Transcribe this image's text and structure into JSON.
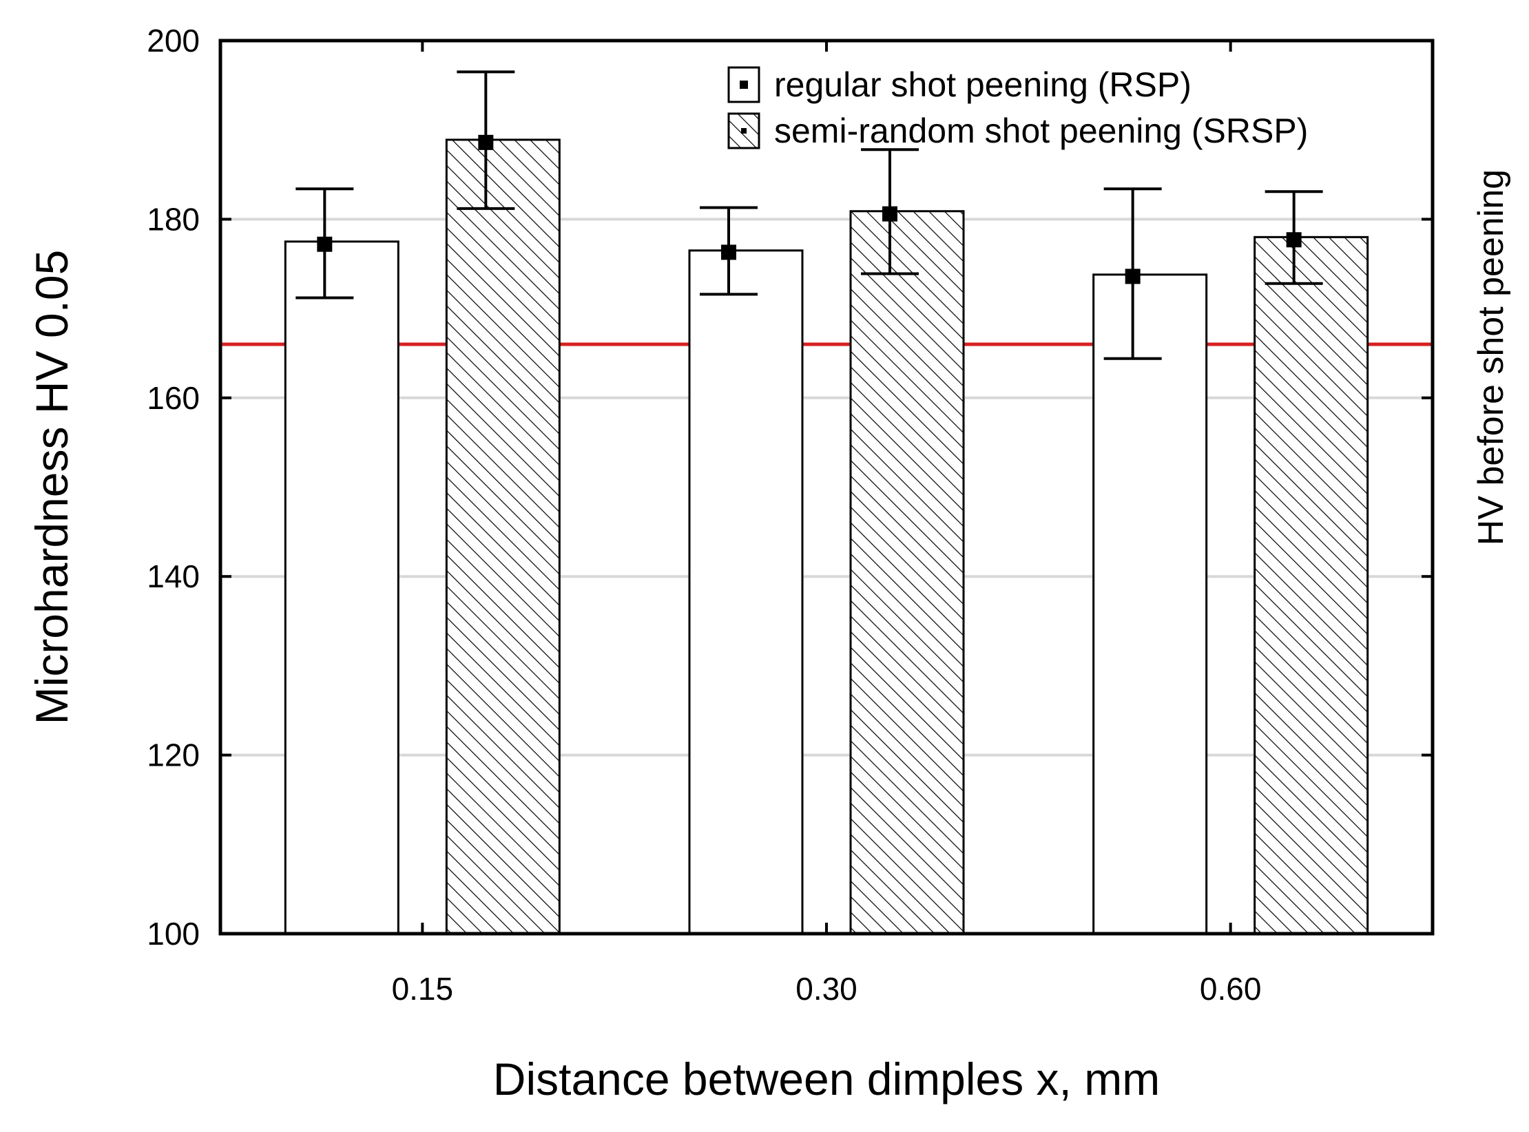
{
  "chart_data": {
    "type": "bar",
    "title": "",
    "xlabel": "Distance between dimples x, mm",
    "ylabel": "Microhardness HV 0.05",
    "right_label": "HV before shot peening",
    "categories": [
      "0.15",
      "0.30",
      "0.60"
    ],
    "ylim": [
      100,
      200
    ],
    "yticks": [
      "100",
      "120",
      "140",
      "160",
      "180",
      "200"
    ],
    "grid": true,
    "legend_position": "top-right",
    "reference_line": {
      "label": "HV before shot peening",
      "value": 166,
      "color": "#d62020"
    },
    "series": [
      {
        "name": "regular shot peening (RSP)",
        "pattern": "solid-white",
        "values": [
          177.5,
          176.5,
          173.8
        ],
        "means": [
          177.2,
          176.3,
          173.6
        ],
        "err_low": [
          171.2,
          171.6,
          164.4
        ],
        "err_high": [
          183.4,
          181.3,
          183.4
        ]
      },
      {
        "name": "semi-random shot peening (SRSP)",
        "pattern": "hatched",
        "values": [
          188.9,
          180.9,
          178.0
        ],
        "means": [
          188.6,
          180.6,
          177.7
        ],
        "err_low": [
          181.2,
          173.9,
          172.8
        ],
        "err_high": [
          196.5,
          187.8,
          183.1
        ]
      }
    ],
    "colors": {
      "grid": "#d8d8d8",
      "axis": "#000000",
      "bar_fill": "#ffffff",
      "hatch": "#000000"
    }
  }
}
